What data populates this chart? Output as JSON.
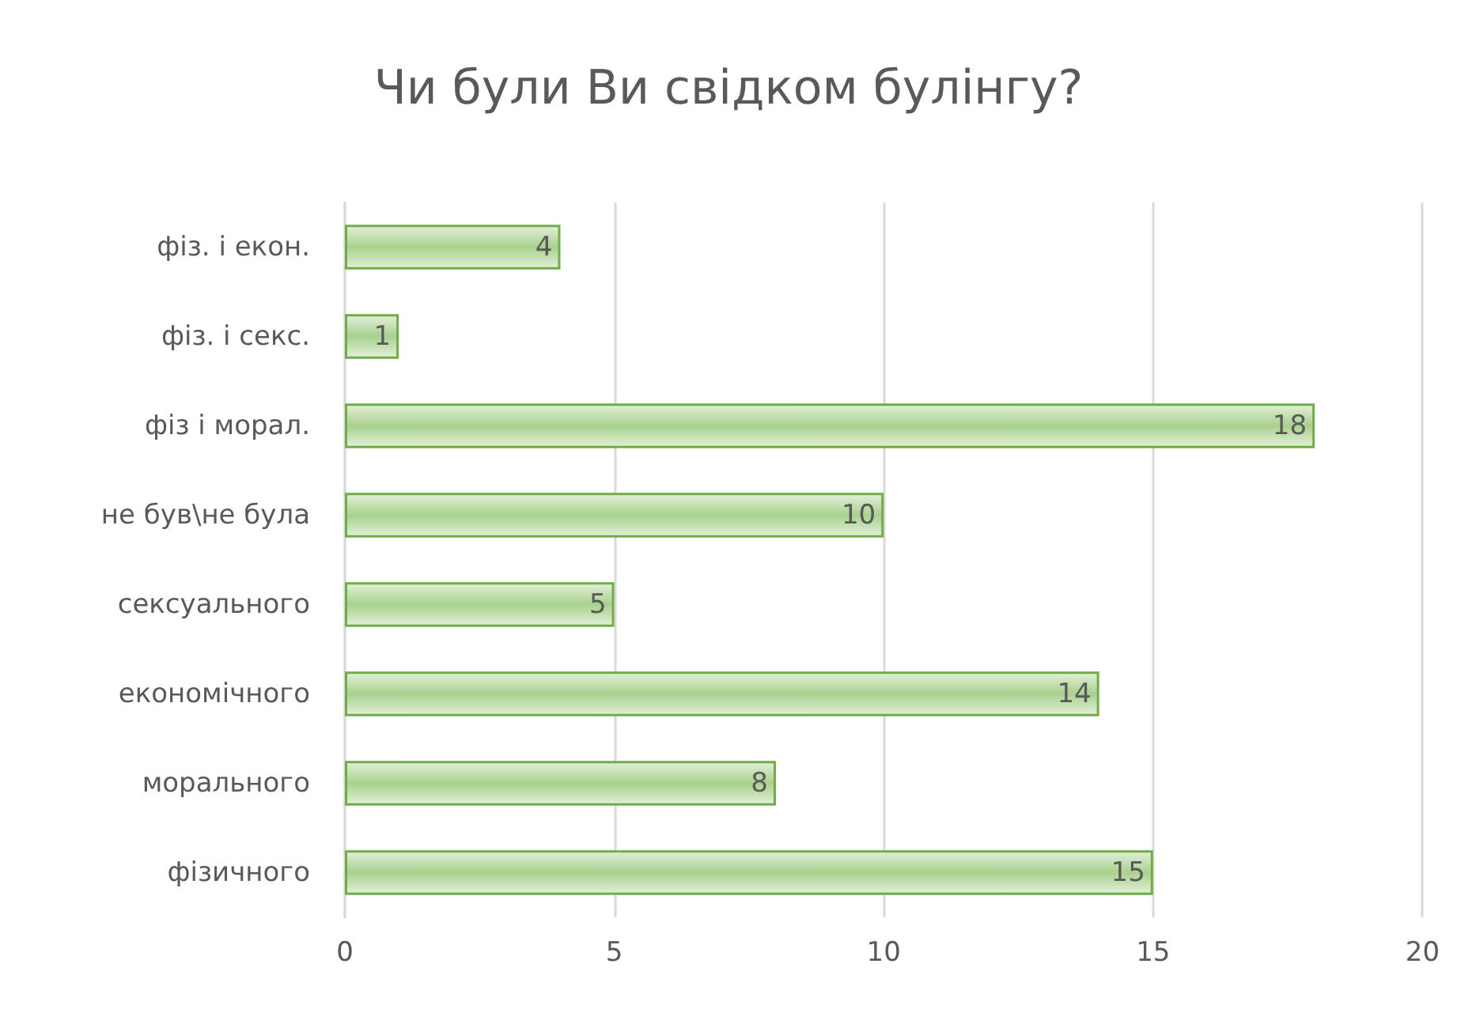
{
  "chart_data": {
    "type": "bar",
    "orientation": "horizontal",
    "title": "Чи були Ви свідком булінгу?",
    "categories": [
      "фіз. і екон.",
      "фіз. і секс.",
      "фіз і морал.",
      "не був\\не була",
      "сексуального",
      "економічного",
      "морального",
      "фізичного"
    ],
    "values": [
      4,
      1,
      18,
      10,
      5,
      14,
      8,
      15
    ],
    "color": "#70ad47",
    "xlim": [
      0,
      20
    ],
    "xticks": [
      0,
      5,
      10,
      15,
      20
    ],
    "grid": "x",
    "data_labels": true
  }
}
